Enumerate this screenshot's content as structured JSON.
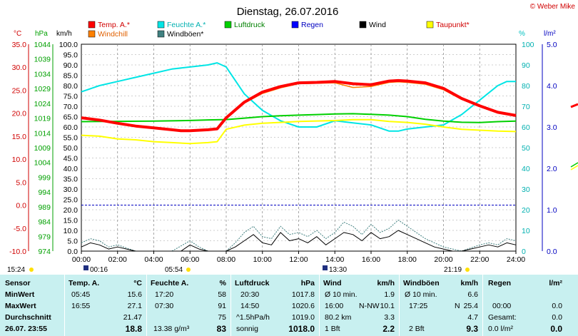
{
  "title": "Dienstag, 26.07.2016",
  "copyright": "© Weber Mike",
  "axes": {
    "celsius_label": "°C",
    "hpa_label": "hPa",
    "kmh_label": "km/h",
    "pct_label": "%",
    "lm2_label": "l/m²"
  },
  "colors": {
    "temp": "#ff0000",
    "windchill": "#ff8000",
    "feuchte": "#00e5e5",
    "windboeen": "#408080",
    "luftdruck": "#00d000",
    "regen": "#0000ff",
    "wind": "#000000",
    "taupunkt": "#ffff00",
    "table_bg": "#c8f0f0"
  },
  "sun": {
    "sunrise": "05:54",
    "sunset": "21:19",
    "moonrise": "00:16",
    "moonset": "13:30",
    "left_time": "15:24"
  },
  "chart_data": {
    "type": "line",
    "x_label_hours": [
      "00:00",
      "02:00",
      "04:00",
      "06:00",
      "08:00",
      "10:00",
      "12:00",
      "14:00",
      "16:00",
      "18:00",
      "20:00",
      "22:00",
      "24:00"
    ],
    "xlim": [
      0,
      24
    ],
    "ylim_celsius": [
      -10,
      35
    ],
    "ylim_hpa": [
      974,
      1044
    ],
    "ylim_kmh": [
      0,
      100
    ],
    "ylim_pct": [
      0,
      100
    ],
    "ylim_lm2": [
      0,
      5
    ],
    "ticks_celsius": [
      "35.0",
      "30.0",
      "25.0",
      "20.0",
      "15.0",
      "10.0",
      "5.0",
      "0.0",
      "-5.0",
      "-10.0"
    ],
    "ticks_hpa": [
      "1044",
      "1039",
      "1034",
      "1029",
      "1024",
      "1019",
      "1014",
      "1009",
      "1004",
      "999",
      "994",
      "989",
      "984",
      "979",
      "974"
    ],
    "ticks_kmh": [
      "100.0",
      "95.0",
      "90.0",
      "85.0",
      "80.0",
      "75.0",
      "70.0",
      "65.0",
      "60.0",
      "55.0",
      "50.0",
      "45.0",
      "40.0",
      "35.0",
      "30.0",
      "25.0",
      "20.0",
      "15.0",
      "10.0",
      "5.0",
      "0.0"
    ],
    "ticks_pct": [
      "100",
      "90",
      "80",
      "70",
      "60",
      "50",
      "40",
      "30",
      "20",
      "10",
      "0"
    ],
    "ticks_lm2": [
      "5.0",
      "4.0",
      "3.0",
      "2.0",
      "1.0",
      "0.0"
    ],
    "legend": [
      {
        "name": "Temp. A.*",
        "color": "#ff0000"
      },
      {
        "name": "Feuchte A.*",
        "color": "#00e5e5"
      },
      {
        "name": "Luftdruck",
        "color": "#00d000"
      },
      {
        "name": "Regen",
        "color": "#0000ff"
      },
      {
        "name": "Wind",
        "color": "#000000"
      },
      {
        "name": "Taupunkt*",
        "color": "#ffff00"
      },
      {
        "name": "Windchill",
        "color": "#ff8000"
      },
      {
        "name": "Windböen*",
        "color": "#408080"
      }
    ],
    "series": [
      {
        "name": "Temp. A.*",
        "unit": "celsius",
        "x": [
          0,
          1,
          2,
          3,
          4,
          5,
          5.5,
          6,
          7,
          7.5,
          8,
          9,
          10,
          11,
          12,
          13,
          14,
          15,
          16,
          17,
          17.5,
          18,
          19,
          20,
          21,
          22,
          23,
          24
        ],
        "y": [
          19,
          18.5,
          17.8,
          17.2,
          16.8,
          16.4,
          16.2,
          16.2,
          16.4,
          16.6,
          19,
          22.4,
          24.6,
          25.8,
          26.6,
          26.7,
          26.9,
          26.4,
          26.2,
          27.0,
          27.1,
          27.0,
          26.6,
          25.4,
          23.2,
          21.6,
          20.2,
          19.5
        ]
      },
      {
        "name": "Windchill",
        "unit": "celsius",
        "x": [
          0,
          1,
          2,
          3,
          4,
          5,
          5.5,
          6,
          7,
          7.5,
          8,
          9,
          10,
          11,
          12,
          13,
          14,
          15,
          16,
          17,
          17.5,
          18,
          19,
          20,
          21,
          22,
          23,
          24
        ],
        "y": [
          19,
          18.5,
          17.8,
          17.2,
          16.8,
          16.4,
          16.2,
          16.2,
          16.4,
          16.6,
          19,
          22.2,
          24.3,
          25.5,
          26.4,
          26.5,
          26.6,
          25.6,
          25.8,
          26.7,
          26.8,
          26.7,
          26.3,
          25.1,
          23.0,
          21.6,
          20.2,
          19.5
        ]
      },
      {
        "name": "Taupunkt*",
        "unit": "celsius",
        "x": [
          0,
          1,
          2,
          3,
          4,
          5,
          6,
          7,
          7.5,
          8,
          9,
          10,
          11,
          12,
          13,
          14,
          15,
          16,
          17,
          18,
          19,
          20,
          21,
          22,
          23,
          24
        ],
        "y": [
          15.2,
          15.0,
          14.4,
          14.2,
          13.8,
          13.6,
          13.4,
          13.6,
          13.8,
          16.5,
          17.4,
          17.8,
          18.0,
          18.2,
          18.3,
          18.4,
          18.6,
          18.6,
          18.2,
          18.0,
          17.6,
          17.0,
          16.5,
          16.3,
          16.1,
          16.0
        ]
      },
      {
        "name": "Luftdruck",
        "unit": "hpa",
        "x": [
          0,
          2,
          4,
          6,
          7,
          8,
          9,
          10,
          11,
          12,
          13,
          14,
          15,
          16,
          17,
          18,
          19,
          20,
          21,
          22,
          23,
          24
        ],
        "y": [
          1017.8,
          1017.9,
          1018.0,
          1018.2,
          1018.4,
          1018.5,
          1019.0,
          1019.5,
          1019.8,
          1020.0,
          1020.2,
          1020.4,
          1020.5,
          1020.3,
          1020.0,
          1019.5,
          1018.6,
          1018.0,
          1017.6,
          1017.5,
          1017.8,
          1018.0
        ]
      },
      {
        "name": "Feuchte A.*",
        "unit": "pct",
        "x": [
          0,
          1,
          2,
          3,
          4,
          5,
          6,
          7,
          7.5,
          8,
          9,
          10,
          11,
          12,
          13,
          14,
          15,
          16,
          17,
          17.5,
          18,
          19,
          20,
          21,
          22,
          23,
          23.5,
          24
        ],
        "y": [
          77,
          80,
          82,
          84,
          86,
          88,
          89,
          90,
          91,
          89,
          76,
          68,
          63,
          60,
          60,
          63,
          62,
          61,
          58,
          58,
          59,
          60,
          61,
          66,
          73,
          80,
          82,
          82
        ]
      },
      {
        "name": "Wind",
        "unit": "kmh",
        "x": [
          0,
          0.5,
          1,
          1.5,
          2,
          2.5,
          3,
          4,
          5,
          5.5,
          6,
          6.5,
          7,
          8,
          8.5,
          9,
          9.5,
          10,
          10.5,
          11,
          11.5,
          12,
          12.5,
          13,
          13.5,
          14,
          14.5,
          15,
          15.5,
          16,
          16.5,
          17,
          17.5,
          18,
          18.5,
          19,
          19.5,
          20,
          20.5,
          21,
          21.5,
          22,
          22.5,
          23,
          23.5,
          24
        ],
        "y": [
          2,
          4,
          3,
          1,
          2,
          1,
          0,
          0,
          0,
          0,
          3,
          1,
          0,
          0,
          2,
          5,
          8,
          4,
          3,
          9,
          5,
          6,
          4,
          7,
          3,
          6,
          9,
          8,
          5,
          9,
          6,
          7,
          10,
          8,
          6,
          4,
          2,
          1,
          0,
          0,
          1,
          2,
          3,
          2,
          4,
          3
        ]
      },
      {
        "name": "Windböen*",
        "unit": "kmh",
        "x": [
          0,
          0.5,
          1,
          1.5,
          2,
          3,
          4,
          5,
          6,
          6.5,
          7,
          8,
          8.5,
          9,
          9.5,
          10,
          10.5,
          11,
          11.5,
          12,
          12.5,
          13,
          13.5,
          14,
          14.5,
          15,
          15.5,
          16,
          16.5,
          17,
          17.5,
          18,
          18.5,
          19,
          19.5,
          20,
          21,
          22,
          22.5,
          23,
          23.5,
          24
        ],
        "y": [
          4,
          6,
          5,
          2,
          3,
          0,
          0,
          0,
          5,
          2,
          0,
          0,
          4,
          9,
          12,
          7,
          6,
          12,
          8,
          9,
          7,
          10,
          6,
          9,
          14,
          12,
          8,
          13,
          9,
          11,
          15,
          12,
          9,
          6,
          4,
          2,
          0,
          3,
          4,
          3,
          6,
          5
        ]
      }
    ]
  },
  "table": {
    "sensor": {
      "header": "Sensor",
      "min": "MinWert",
      "max": "MaxWert",
      "avg": "Durchschnitt",
      "now": "26.07. 23:55"
    },
    "temp": {
      "header": "Temp. A.",
      "unit": "°C",
      "min_time": "05:45",
      "min_val": "15.6",
      "max_time": "16:55",
      "max_val": "27.1",
      "avg_val": "21.47",
      "now_val": "18.8"
    },
    "feuchte": {
      "header": "Feuchte A.",
      "unit": "%",
      "min_time": "17:20",
      "min_val": "58",
      "max_time": "07:30",
      "max_val": "91",
      "avg_val": "75",
      "now_note": "13.38 g/m³",
      "now_val": "83"
    },
    "luftdruck": {
      "header": "Luftdruck",
      "unit": "hPa",
      "min_time": "20:30",
      "min_val": "1017.8",
      "max_time": "14:50",
      "max_val": "1020.6",
      "avg_note": "^1.5hPa/h",
      "avg_val": "1019.0",
      "now_note": "sonnig",
      "now_val": "1018.0"
    },
    "wind": {
      "header": "Wind",
      "unit": "km/h",
      "r1_a": "Ø 10 min.",
      "r1_b": "1.9",
      "r2_a": "16:00",
      "r2_mid": "N-NW",
      "r2_b": "10.1",
      "r3_a": "80.2 km",
      "r3_b": "3.3",
      "r4_a": "1 Bft",
      "r4_b": "2.2"
    },
    "boeen": {
      "header": "Windböen",
      "unit": "km/h",
      "r1_a": "Ø 10 min.",
      "r1_b": "6.6",
      "r2_a": "17:25",
      "r2_mid": "N",
      "r2_b": "25.4",
      "r3_b": "4.7",
      "r4_a": "2 Bft",
      "r4_b": "9.3"
    },
    "regen": {
      "header": "Regen",
      "unit": "l/m²",
      "r2_a": "00:00",
      "r2_b": "0.0",
      "r3_a": "Gesamt:",
      "r3_b": "0.0",
      "r4_a": "0.0 l/m²",
      "r4_b": "0.0"
    }
  }
}
